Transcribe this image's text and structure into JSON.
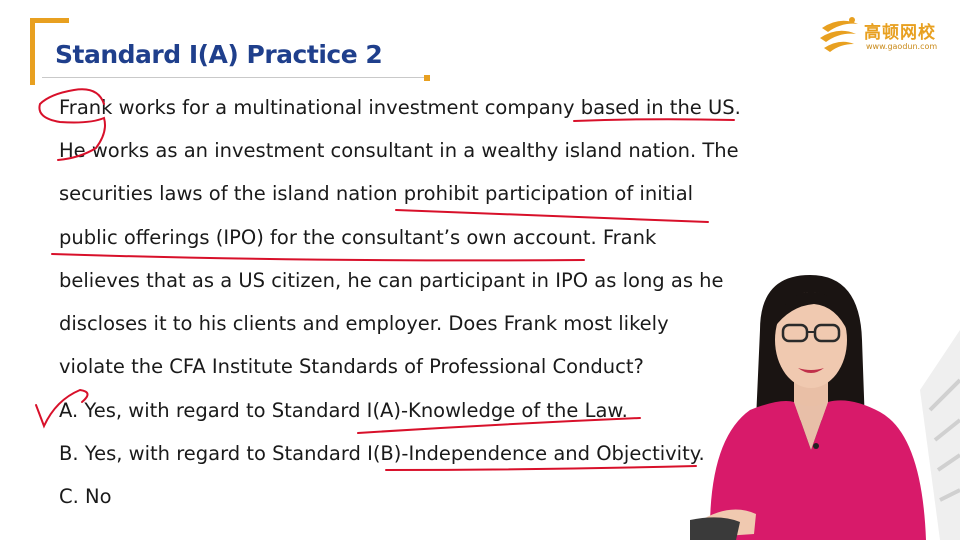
{
  "slide": {
    "title": "Standard I(A) Practice 2",
    "logo": {
      "name": "高顿网校",
      "url": "www.gaodun.com"
    },
    "question_lines": [
      "Frank works for a multinational investment company based in the US.",
      "He works as an investment consultant in a wealthy island nation. The",
      "securities laws of the island nation prohibit participation of initial",
      "public offerings (IPO) for the consultant’s own account. Frank",
      "believes that as a US citizen, he can participant in IPO as long as he",
      "discloses it to his clients and employer. Does Frank most likely",
      "violate the CFA Institute Standards of Professional Conduct?"
    ],
    "options": [
      "A. Yes, with regard to Standard I(A)-Knowledge of the Law.",
      "B. Yes, with regard to Standard I(B)-Independence and Objectivity.",
      "C. No"
    ]
  },
  "colors": {
    "accent": "#e8a020",
    "title": "#1f3f8c",
    "ink": "#d8102a",
    "shirt": "#d81a6a"
  }
}
